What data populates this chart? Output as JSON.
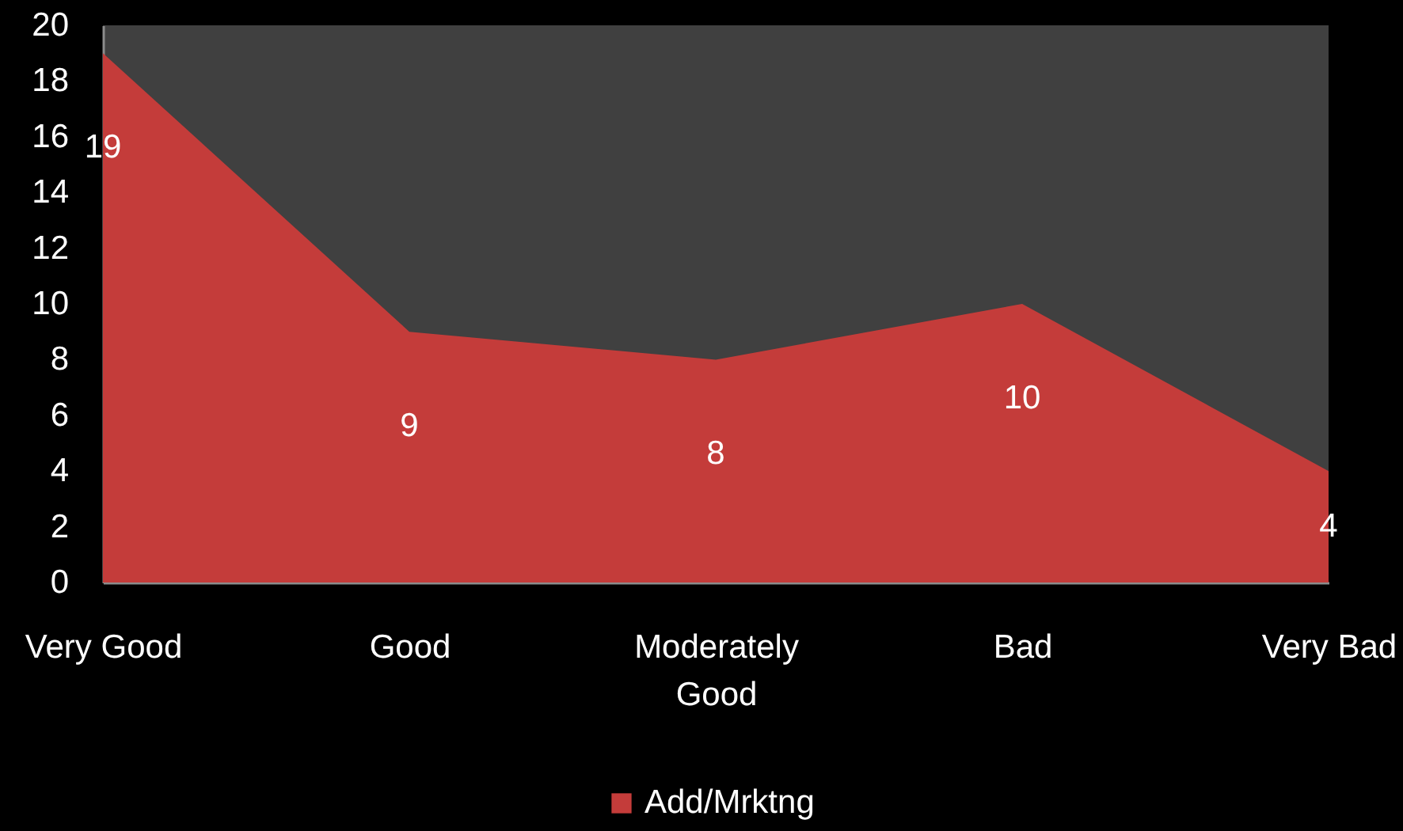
{
  "chart_data": {
    "type": "area",
    "categories": [
      "Very Good",
      "Good",
      "Moderately Good",
      "Bad",
      "Very Bad"
    ],
    "series": [
      {
        "name": "Add/Mrktng",
        "color": "#c43c3a",
        "values": [
          19,
          9,
          8,
          10,
          4
        ]
      }
    ],
    "ylim": [
      0,
      20
    ],
    "yticks": [
      0,
      2,
      4,
      6,
      8,
      10,
      12,
      14,
      16,
      18,
      20
    ],
    "data_labels": true,
    "legend": "bottom"
  }
}
